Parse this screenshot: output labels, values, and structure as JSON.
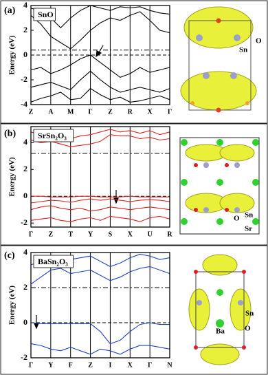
{
  "chart_data": [
    {
      "type": "line",
      "panel_label": "(a)",
      "title": "SnO",
      "ylabel": "Energy (eV)",
      "x": [
        0,
        0.5,
        1,
        1.5,
        2,
        2.5,
        3,
        3.5,
        4,
        4.5,
        5,
        5.5,
        6,
        6.5,
        7
      ],
      "xlim": [
        0,
        7
      ],
      "xticks": [
        {
          "value": 0,
          "label": "Z"
        },
        {
          "value": 1,
          "label": "A"
        },
        {
          "value": 2,
          "label": "M"
        },
        {
          "value": 3,
          "label": "Γ"
        },
        {
          "value": 4,
          "label": "Z"
        },
        {
          "value": 5,
          "label": "R"
        },
        {
          "value": 6,
          "label": "X"
        },
        {
          "value": 7,
          "label": "Γ"
        }
      ],
      "ylim": [
        -4,
        4
      ],
      "yticks": [
        -4,
        -2,
        0,
        2,
        4
      ],
      "hlines": [
        {
          "value": 0,
          "style": "dashed"
        },
        {
          "value": 0.4,
          "style": "dashdot"
        }
      ],
      "color": "#000000",
      "series": [
        {
          "values": [
            3.8,
            3.5,
            3.0,
            2.2,
            3.0,
            3.6,
            4.0,
            3.8,
            3.6,
            3.9,
            3.8,
            3.9,
            3.6,
            3.4,
            3.3
          ]
        },
        {
          "values": [
            3.2,
            2.5,
            1.5,
            1.0,
            0.5,
            1.2,
            2.0,
            2.6,
            3.0,
            2.8,
            3.2,
            3.5,
            2.8,
            2.0,
            1.8
          ]
        },
        {
          "values": [
            -1.2,
            -1.0,
            -1.5,
            -1.2,
            -0.8,
            -0.3,
            0,
            -0.6,
            -1.2,
            -1.8,
            -1.5,
            -1.0,
            -1.4,
            -1.2,
            -1.0
          ]
        },
        {
          "values": [
            -2.6,
            -2.4,
            -2.2,
            -2.5,
            -2.8,
            -2.0,
            -1.3,
            -2.0,
            -2.6,
            -3.0,
            -2.8,
            -2.6,
            -2.8,
            -3.0,
            -2.7
          ]
        },
        {
          "values": [
            -3.8,
            -3.5,
            -3.3,
            -3.0,
            -3.6,
            -3.5,
            -2.7,
            -3.2,
            -3.6,
            -3.4,
            -3.8,
            -3.7,
            -3.5,
            -3.3,
            -3.6
          ]
        }
      ],
      "structure_labels": [
        "O",
        "Sn"
      ]
    },
    {
      "type": "line",
      "panel_label": "(b)",
      "title": "SrSn₂O₃",
      "ylabel": "Energy (eV)",
      "x": [
        0,
        0.5,
        1,
        1.5,
        2,
        2.5,
        3,
        3.5,
        4,
        4.5,
        5,
        5.5,
        6,
        6.5,
        7
      ],
      "xlim": [
        0,
        7
      ],
      "xticks": [
        {
          "value": 0,
          "label": "Γ"
        },
        {
          "value": 1,
          "label": "Z"
        },
        {
          "value": 2,
          "label": "T"
        },
        {
          "value": 3,
          "label": "Y"
        },
        {
          "value": 4,
          "label": "S"
        },
        {
          "value": 5,
          "label": "X"
        },
        {
          "value": 6,
          "label": "U"
        },
        {
          "value": 7,
          "label": "R"
        }
      ],
      "ylim": [
        -2.3,
        5.2
      ],
      "yticks": [
        -2,
        0,
        2,
        4
      ],
      "hlines": [
        {
          "value": 0,
          "style": "dashed"
        },
        {
          "value": 3.2,
          "style": "dashdot"
        }
      ],
      "color": "#e02020",
      "series": [
        {
          "values": [
            4.8,
            4.6,
            4.7,
            4.5,
            4.3,
            4.5,
            4.6,
            4.8,
            5.0,
            4.8,
            4.9,
            4.7,
            4.9,
            4.6,
            4.8
          ]
        },
        {
          "values": [
            4.2,
            4.0,
            4.1,
            3.9,
            3.7,
            3.8,
            3.9,
            4.1,
            4.6,
            4.5,
            4.5,
            4.3,
            4.4,
            4.2,
            4.3
          ]
        },
        {
          "values": [
            0,
            0,
            -0.05,
            -0.05,
            -0.05,
            0,
            0,
            -0.05,
            -0.05,
            -0.05,
            0,
            -0.05,
            -0.05,
            -0.05,
            -0.05
          ]
        },
        {
          "values": [
            -0.5,
            -0.4,
            -0.3,
            -0.35,
            -0.45,
            -0.3,
            -0.2,
            -0.3,
            -0.2,
            -0.3,
            -0.4,
            -0.3,
            -0.25,
            -0.3,
            -0.4
          ]
        },
        {
          "values": [
            -1.0,
            -0.8,
            -0.7,
            -0.9,
            -1.0,
            -0.9,
            -1.1,
            -1.0,
            -0.8,
            -0.9,
            -1.0,
            -0.9,
            -0.8,
            -0.9,
            -1.0
          ]
        },
        {
          "values": [
            -1.8,
            -1.7,
            -1.6,
            -1.8,
            -1.9,
            -1.7,
            -1.6,
            -1.8,
            -1.5,
            -1.6,
            -1.7,
            -1.9,
            -1.6,
            -1.5,
            -1.7
          ]
        }
      ],
      "structure_labels": [
        "O",
        "Sn",
        "Sr"
      ]
    },
    {
      "type": "line",
      "panel_label": "(c)",
      "title": "BaSn₂O₃",
      "ylabel": "Energy (eV)",
      "x": [
        0,
        0.5,
        1,
        1.5,
        2,
        2.5,
        3,
        3.5,
        4,
        4.5,
        5,
        5.5,
        6,
        6.5,
        7
      ],
      "xlim": [
        0,
        7
      ],
      "xticks": [
        {
          "value": 0,
          "label": "Γ"
        },
        {
          "value": 1,
          "label": "Y"
        },
        {
          "value": 2,
          "label": "F"
        },
        {
          "value": 3,
          "label": "Z"
        },
        {
          "value": 4,
          "label": "I"
        },
        {
          "value": 5,
          "label": "X"
        },
        {
          "value": 6,
          "label": "Γ"
        },
        {
          "value": 7,
          "label": "N"
        }
      ],
      "ylim": [
        -2,
        4
      ],
      "yticks": [
        -2,
        0,
        2,
        4
      ],
      "hlines": [
        {
          "value": 0,
          "style": "dashed"
        },
        {
          "value": 2,
          "style": "dashdot"
        }
      ],
      "color": "#2040c0",
      "series": [
        {
          "values": [
            3.3,
            3.5,
            3.7,
            3.8,
            3.6,
            3.7,
            3.8,
            3.5,
            3.2,
            3.4,
            3.7,
            3.9,
            3.8,
            3.6,
            3.7
          ]
        },
        {
          "values": [
            2.2,
            2.6,
            3.0,
            3.1,
            2.8,
            2.9,
            3.0,
            2.7,
            2.4,
            2.6,
            2.9,
            3.1,
            3.2,
            3.0,
            2.8
          ]
        },
        {
          "values": [
            0,
            -0.05,
            -0.05,
            -0.05,
            -0.05,
            -0.05,
            -0.05,
            -0.5,
            -1.2,
            -1.0,
            -0.5,
            -0.1,
            0,
            -0.1,
            -0.1
          ]
        },
        {
          "values": [
            -1.2,
            -1.3,
            -1.5,
            -1.6,
            -1.4,
            -1.6,
            -1.8,
            -1.5,
            -1.6,
            -1.8,
            -1.5,
            -1.3,
            -1.3,
            -1.4,
            -1.5
          ]
        }
      ],
      "structure_labels": [
        "Ba",
        "Sn",
        "O"
      ]
    }
  ]
}
